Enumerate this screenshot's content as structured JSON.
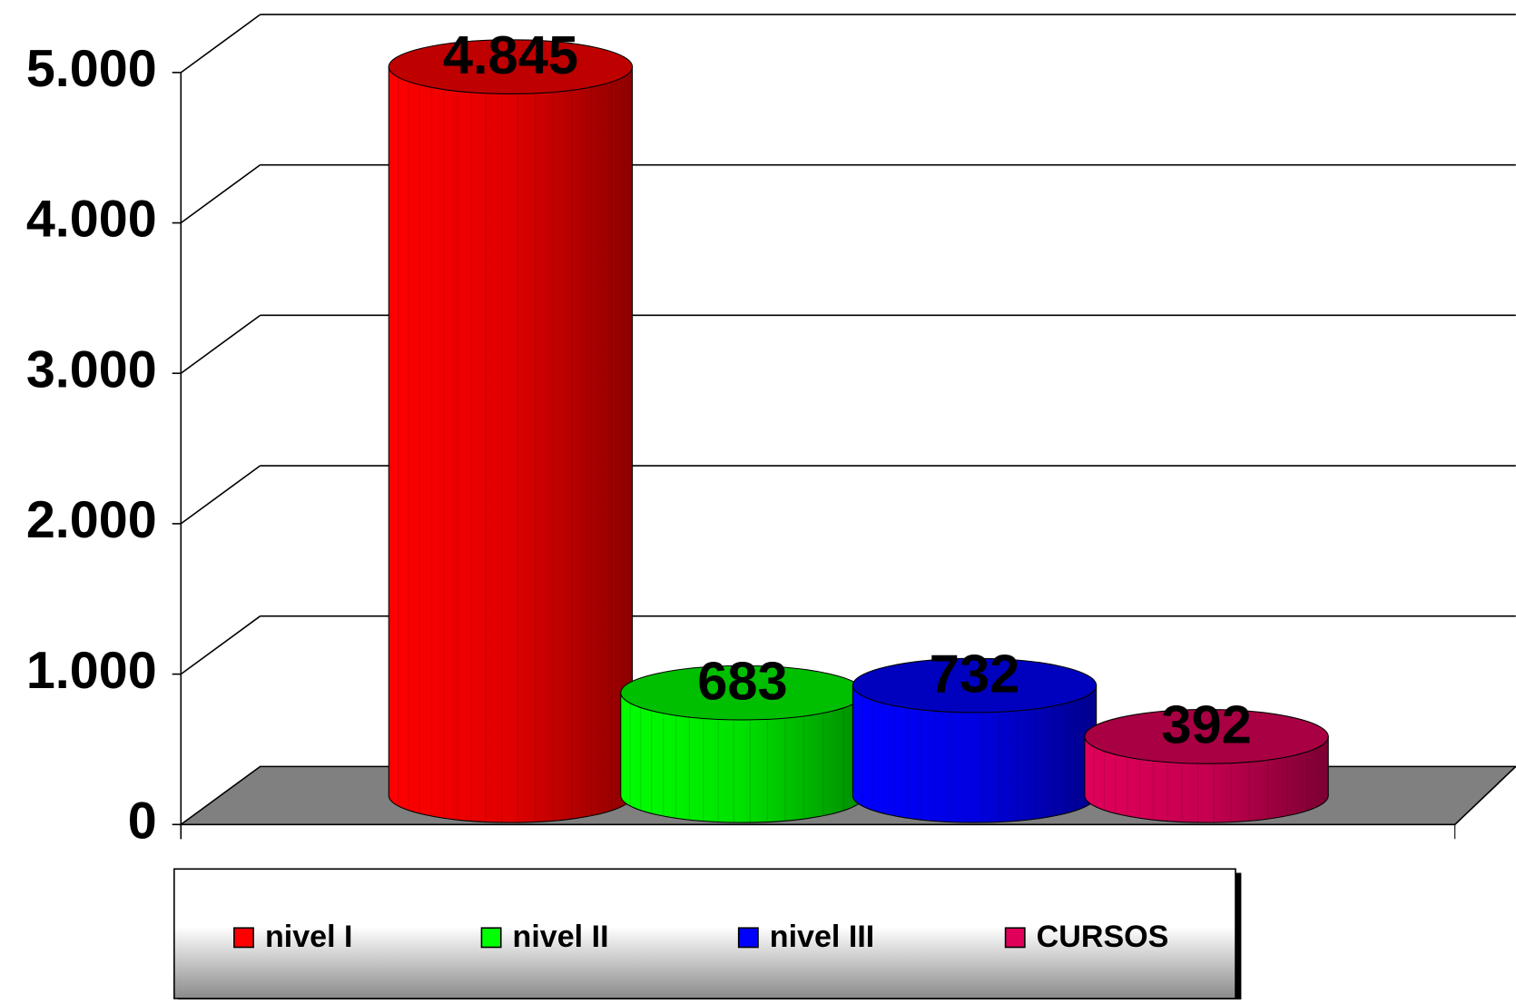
{
  "chart_data": {
    "type": "bar",
    "series": [
      {
        "name": "nivel I",
        "color": "#ff0000",
        "values": [
          4845
        ],
        "value_labels": [
          "4.845"
        ]
      },
      {
        "name": "nivel II",
        "color": "#00ff00",
        "values": [
          683
        ]
      },
      {
        "name": "nivel III",
        "color": "#0000ff",
        "values": [
          732
        ]
      },
      {
        "name": "CURSOS",
        "color": "#e0005a",
        "values": [
          392
        ]
      }
    ],
    "ylim": [
      0,
      5000
    ],
    "yticks": [
      0,
      {
        "value": 1000,
        "label": "1.000"
      },
      {
        "value": 2000,
        "label": "2.000"
      },
      {
        "value": 3000,
        "label": "3.000"
      },
      {
        "value": 4000,
        "label": "4.000"
      },
      {
        "value": 5000,
        "label": "5.000"
      }
    ],
    "grid": true,
    "legend": "bottom"
  }
}
